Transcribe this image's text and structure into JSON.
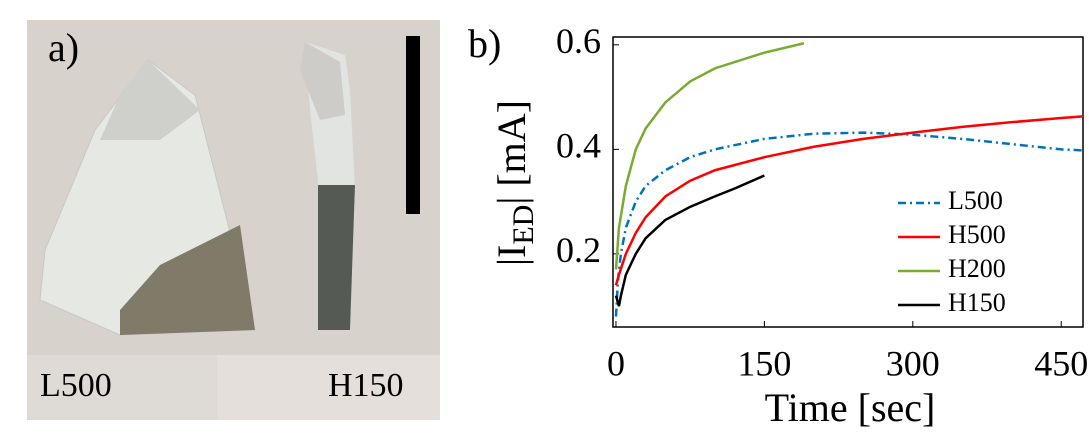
{
  "photo_panel": {
    "label": "a)",
    "sample_labels": [
      "L500",
      "H150"
    ]
  },
  "chart_data": {
    "type": "line",
    "panel_label": "b)",
    "xlabel": "Time [sec]",
    "ylabel": {
      "main": "|I",
      "sub": "ED",
      "rest": "| [mA]"
    },
    "xlim": [
      -3,
      472
    ],
    "ylim": [
      0.06,
      0.615
    ],
    "xticks": [
      0,
      150,
      300,
      450
    ],
    "yticks": [
      0.2,
      0.4,
      0.6
    ],
    "legend": "lower right",
    "series": [
      {
        "name": "L500",
        "color": "#0072BD",
        "linestyle": "dashdot",
        "x": [
          0,
          2,
          5,
          10,
          20,
          30,
          50,
          75,
          100,
          150,
          200,
          250,
          300,
          350,
          400,
          450,
          472
        ],
        "values": [
          0.08,
          0.15,
          0.2,
          0.25,
          0.3,
          0.33,
          0.36,
          0.385,
          0.4,
          0.42,
          0.43,
          0.432,
          0.428,
          0.42,
          0.41,
          0.4,
          0.398
        ]
      },
      {
        "name": "H500",
        "color": "#FF0000",
        "linestyle": "solid",
        "x": [
          0,
          3,
          10,
          20,
          30,
          50,
          75,
          100,
          150,
          200,
          250,
          300,
          350,
          400,
          450,
          472
        ],
        "values": [
          0.14,
          0.16,
          0.2,
          0.24,
          0.27,
          0.31,
          0.34,
          0.36,
          0.385,
          0.405,
          0.42,
          0.432,
          0.443,
          0.452,
          0.46,
          0.463
        ]
      },
      {
        "name": "H200",
        "color": "#77AC30",
        "linestyle": "solid",
        "x": [
          0,
          3,
          10,
          20,
          30,
          50,
          75,
          100,
          150,
          190
        ],
        "values": [
          0.17,
          0.25,
          0.33,
          0.4,
          0.44,
          0.49,
          0.53,
          0.555,
          0.585,
          0.603
        ]
      },
      {
        "name": "H150",
        "color": "#000000",
        "linestyle": "solid",
        "x": [
          0,
          3,
          5,
          10,
          20,
          30,
          50,
          75,
          100,
          120,
          150
        ],
        "values": [
          0.12,
          0.1,
          0.12,
          0.16,
          0.2,
          0.23,
          0.265,
          0.29,
          0.31,
          0.325,
          0.35
        ]
      }
    ]
  }
}
